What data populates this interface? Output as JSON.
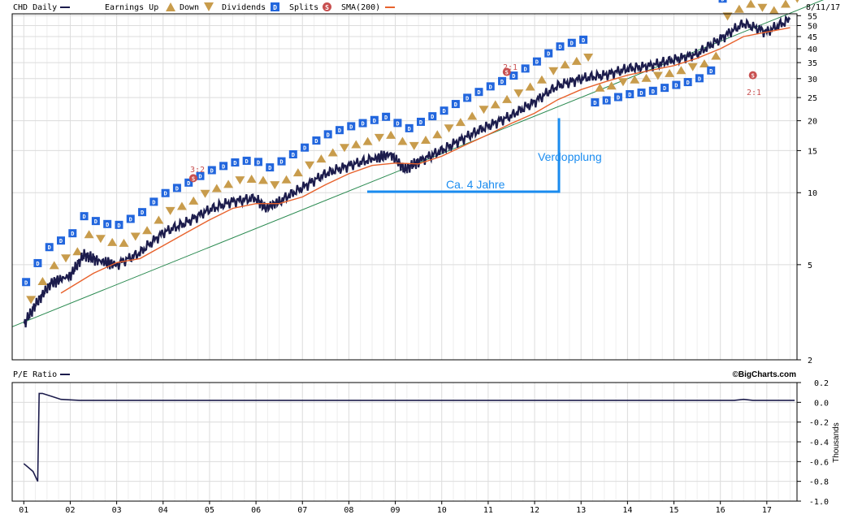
{
  "chart_data": [
    {
      "type": "line",
      "title": "CHD Daily",
      "date": "8/11/17",
      "yscale": "log",
      "ylim": [
        2,
        56
      ],
      "y_ticks": [
        2,
        5,
        10,
        15,
        20,
        25,
        30,
        35,
        40,
        45,
        50,
        55
      ],
      "x_ticks": [
        "01",
        "02",
        "03",
        "04",
        "05",
        "06",
        "07",
        "08",
        "09",
        "10",
        "11",
        "12",
        "13",
        "14",
        "15",
        "16",
        "17"
      ],
      "legend": {
        "earnings_up": "Earnings Up",
        "down": "Down",
        "dividends": "Dividends",
        "splits": "Splits",
        "sma": "SMA(200)"
      },
      "grid": true,
      "series": [
        {
          "name": "CHD Daily",
          "color": "#1c1c4c",
          "x": [
            2001.0,
            2001.3,
            2001.6,
            2002.0,
            2002.3,
            2002.6,
            2003.0,
            2003.5,
            2004.0,
            2004.5,
            2005.0,
            2005.5,
            2006.0,
            2006.2,
            2006.5,
            2007.0,
            2007.5,
            2008.0,
            2008.5,
            2008.9,
            2009.2,
            2009.5,
            2010.0,
            2010.5,
            2011.0,
            2011.5,
            2012.0,
            2012.5,
            2013.0,
            2013.5,
            2014.0,
            2014.5,
            2015.0,
            2015.5,
            2016.0,
            2016.5,
            2017.0,
            2017.5
          ],
          "values": [
            2.8,
            3.5,
            4.2,
            4.5,
            5.5,
            5.2,
            5.0,
            5.6,
            6.8,
            7.5,
            8.5,
            9.2,
            9.5,
            8.6,
            9.2,
            10.5,
            12.0,
            13.0,
            13.8,
            14.5,
            12.5,
            13.5,
            15.0,
            17.0,
            19.0,
            21.0,
            24.0,
            28.0,
            30.0,
            31.0,
            33.0,
            34.0,
            36.0,
            38.0,
            44.0,
            51.0,
            47.0,
            53.0
          ]
        },
        {
          "name": "SMA(200)",
          "color": "#e8622c",
          "x": [
            2001.8,
            2002.5,
            2003.0,
            2003.5,
            2004.0,
            2004.5,
            2005.0,
            2005.5,
            2006.0,
            2006.5,
            2007.0,
            2007.5,
            2008.0,
            2008.5,
            2009.0,
            2009.5,
            2010.0,
            2010.5,
            2011.0,
            2011.5,
            2012.0,
            2012.5,
            2013.0,
            2013.5,
            2014.0,
            2014.5,
            2015.0,
            2015.5,
            2016.0,
            2016.5,
            2017.0,
            2017.5
          ],
          "values": [
            3.8,
            4.6,
            5.1,
            5.3,
            6.0,
            6.8,
            7.7,
            8.6,
            9.0,
            9.0,
            9.6,
            10.8,
            12.0,
            13.0,
            13.3,
            13.2,
            14.2,
            15.8,
            17.5,
            19.5,
            21.5,
            24.5,
            27.0,
            29.0,
            31.0,
            32.5,
            34.0,
            36.5,
            40.0,
            45.0,
            47.0,
            49.0
          ]
        }
      ],
      "annotations": [
        {
          "text": "3:2",
          "x": 2004.65,
          "kind": "split"
        },
        {
          "text": "2:1",
          "x": 2011.4,
          "kind": "split"
        },
        {
          "text": "2:1",
          "x": 2016.7,
          "kind": "split"
        },
        {
          "text": "Ca. 4 Jahre",
          "kind": "drawn",
          "color": "#1a8cf0"
        },
        {
          "text": "Verdopplung",
          "kind": "drawn",
          "color": "#1a8cf0"
        }
      ]
    },
    {
      "type": "line",
      "title": "P/E Ratio",
      "ylabel": "Thousands",
      "ylim": [
        -1.0,
        0.2
      ],
      "y_ticks": [
        "0.2",
        "0.0",
        "-0.2",
        "-0.4",
        "-0.6",
        "-0.8",
        "-1.0"
      ],
      "grid": true,
      "series": [
        {
          "name": "P/E Ratio",
          "color": "#1c1c4c",
          "x": [
            2001.0,
            2001.1,
            2001.2,
            2001.3,
            2001.33,
            2001.4,
            2001.6,
            2001.8,
            2002.2,
            2005.0,
            2008.0,
            2011.0,
            2014.0,
            2016.3,
            2016.5,
            2016.7,
            2017.6
          ],
          "values": [
            -0.62,
            -0.66,
            -0.7,
            -0.8,
            0.09,
            0.09,
            0.06,
            0.03,
            0.02,
            0.02,
            0.02,
            0.02,
            0.02,
            0.02,
            0.03,
            0.02,
            0.02
          ]
        }
      ]
    }
  ],
  "credit": "©BigCharts.com",
  "colors": {
    "dividend": "#2266dd",
    "earnings": "#c89c4c",
    "split": "#c85050",
    "trendline": "#2a8a50",
    "drawn": "#1a8cf0"
  }
}
